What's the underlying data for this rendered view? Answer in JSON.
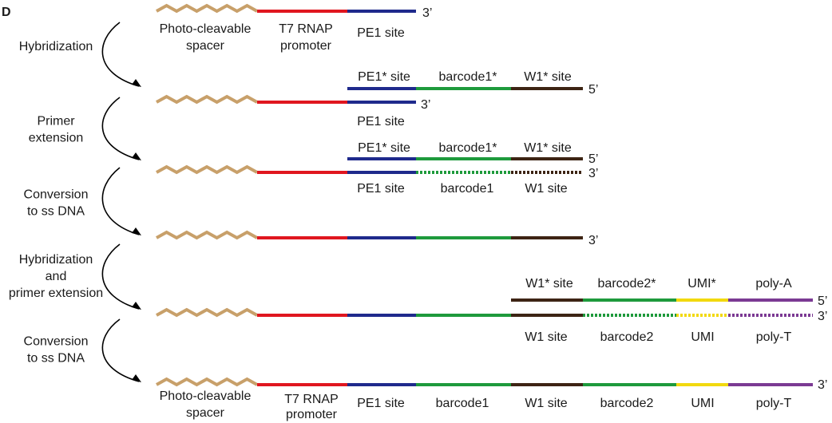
{
  "panel_label": "D",
  "colors": {
    "spacer": "#c8a06a",
    "t7": "#e0161f",
    "pe1": "#1f2a8c",
    "barcode": "#1e9a3c",
    "w1": "#3d2414",
    "umi": "#f2d90f",
    "poly": "#7b3a93",
    "arrow": "#000000"
  },
  "steps": [
    [
      "Hybridization"
    ],
    [
      "Primer",
      "extension"
    ],
    [
      "Conversion",
      "to ss DNA"
    ],
    [
      "Hybridization",
      "and",
      "primer extension"
    ],
    [
      "Conversion",
      "to ss DNA"
    ]
  ],
  "ends": {
    "three_prime": "3’",
    "five_prime": "5’"
  },
  "top_labels": {
    "spacer": [
      "Photo-cleavable",
      "spacer"
    ],
    "t7": [
      "T7 RNAP",
      "promoter"
    ],
    "pe1": "PE1 site"
  },
  "strand_labels": {
    "pe1_star": "PE1* site",
    "barcode1_star": "barcode1*",
    "w1_star": "W1* site",
    "pe1": "PE1 site",
    "barcode1": "barcode1",
    "w1": "W1 site",
    "barcode2_star": "barcode2*",
    "umi_star": "UMI*",
    "poly_a": "poly-A",
    "barcode2": "barcode2",
    "umi": "UMI",
    "poly_t": "poly-T"
  },
  "bottom_labels": {
    "spacer": [
      "Photo-cleavable",
      "spacer"
    ],
    "t7": [
      "T7 RNAP",
      "promoter"
    ],
    "pe1": "PE1 site",
    "barcode1": "barcode1",
    "w1": "W1 site",
    "barcode2": "barcode2",
    "umi": "UMI",
    "poly_t": "poly-T"
  }
}
